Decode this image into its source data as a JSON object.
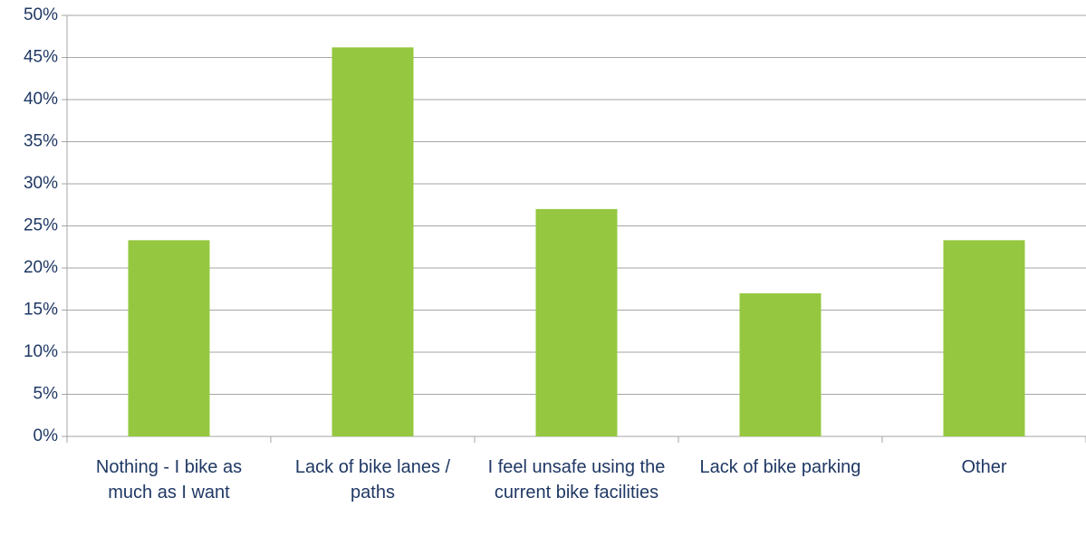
{
  "chart_data": {
    "type": "bar",
    "categories": [
      "Nothing - I bike as much as I want",
      "Lack of bike lanes / paths",
      "I feel unsafe using the current bike facilities",
      "Lack of bike parking",
      "Other"
    ],
    "values": [
      23.3,
      46.2,
      27.0,
      17.0,
      23.3
    ],
    "color": "#95c840",
    "ylim": [
      0,
      50
    ],
    "yticks": [
      {
        "value": 0,
        "label": "0%"
      },
      {
        "value": 5,
        "label": "5%"
      },
      {
        "value": 10,
        "label": "10%"
      },
      {
        "value": 15,
        "label": "15%"
      },
      {
        "value": 20,
        "label": "20%"
      },
      {
        "value": 25,
        "label": "25%"
      },
      {
        "value": 30,
        "label": "30%"
      },
      {
        "value": 35,
        "label": "35%"
      },
      {
        "value": 40,
        "label": "40%"
      },
      {
        "value": 45,
        "label": "45%"
      },
      {
        "value": 50,
        "label": "50%"
      }
    ],
    "grid": true
  }
}
